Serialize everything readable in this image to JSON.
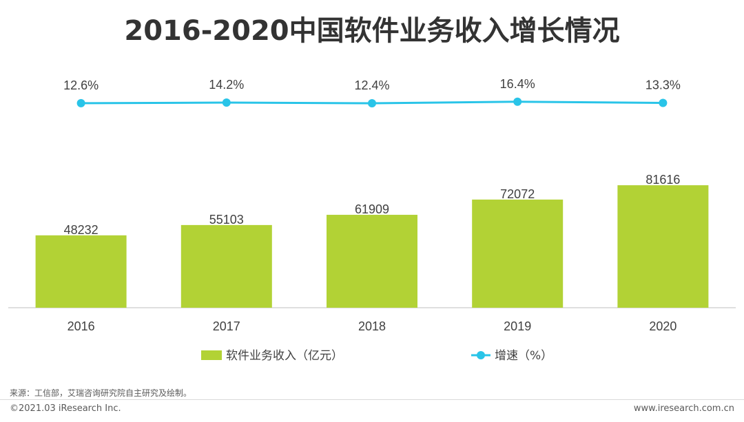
{
  "title": "2016-2020中国软件业务收入增长情况",
  "chart_data": {
    "type": "bar",
    "categories": [
      "2016",
      "2017",
      "2018",
      "2019",
      "2020"
    ],
    "series": [
      {
        "name": "软件业务收入（亿元）",
        "type": "bar",
        "values": [
          48232,
          55103,
          61909,
          72072,
          81616
        ],
        "color": "#b2d235"
      },
      {
        "name": "增速（%）",
        "type": "line",
        "values": [
          12.6,
          14.2,
          12.4,
          16.4,
          13.3
        ],
        "labels": [
          "12.6%",
          "14.2%",
          "12.4%",
          "16.4%",
          "13.3%"
        ],
        "color": "#29c4e8"
      }
    ],
    "legend": "bottom"
  },
  "footer": {
    "source": "来源：工信部，艾瑞咨询研究院自主研究及绘制。",
    "copyright": "©2021.03 iResearch Inc.",
    "website": "www.iresearch.com.cn"
  }
}
